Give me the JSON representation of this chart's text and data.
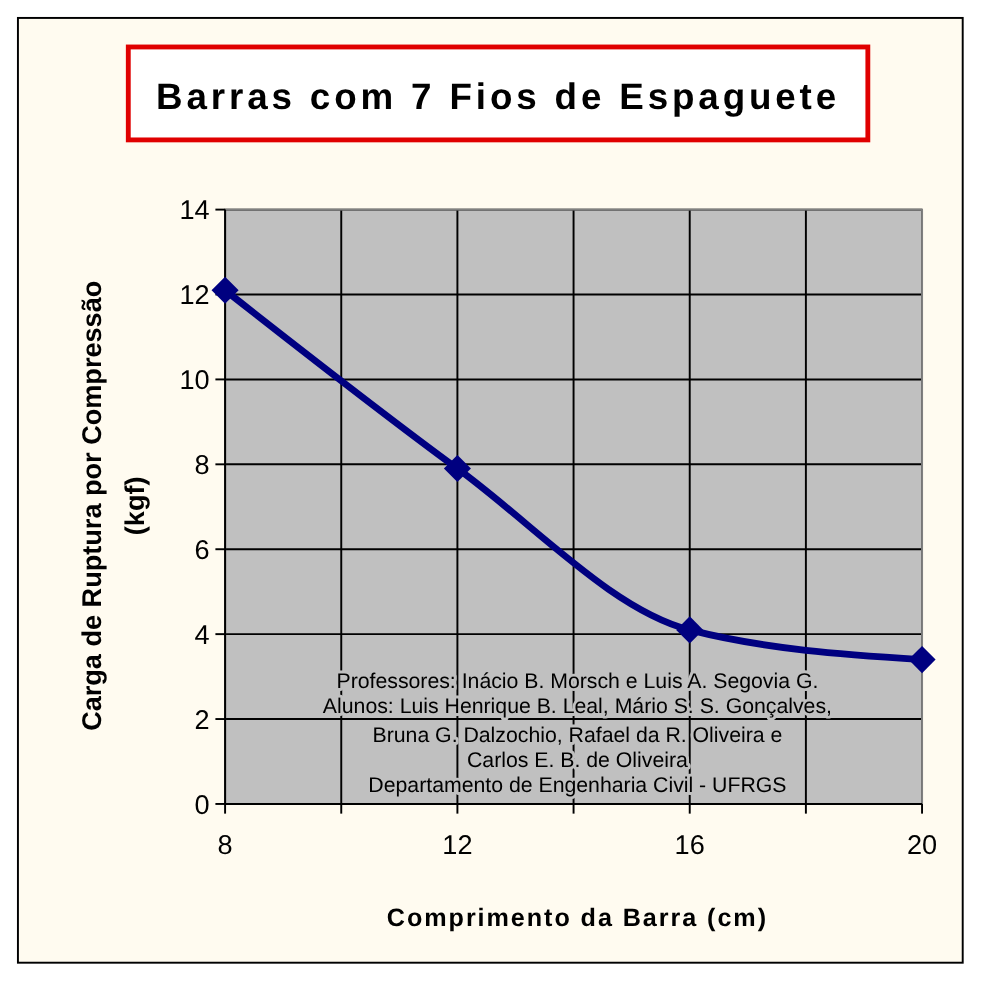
{
  "chart_data": {
    "type": "line",
    "title": "Barras com 7 Fios de Espaguete",
    "xlabel": "Comprimento da Barra (cm)",
    "ylabel": "Carga de Ruptura por Compressão (kgf)",
    "x": [
      8,
      12,
      16,
      20
    ],
    "series": [
      {
        "color": "#000080",
        "values": [
          12.1,
          7.9,
          4.1,
          3.4
        ]
      }
    ],
    "xlim": [
      8,
      20
    ],
    "xticks": [
      8,
      {
        "value": 10,
        "label": null
      },
      12,
      {
        "value": 14,
        "label": null
      },
      16,
      {
        "value": 18,
        "label": null
      },
      20
    ],
    "ylim": [
      0,
      14
    ],
    "yticks": [
      0,
      2,
      4,
      6,
      8,
      10,
      12,
      14
    ],
    "grid": true,
    "marker": "diamond",
    "line_style": "solid",
    "annotations": [
      "Professores: Inácio B. Morsch e Luis A. Segovia G.",
      "Alunos: Luis Henrique B. Leal, Mário S. S. Gonçalves,",
      "Bruna G. Dalzochio, Rafael da R. Oliveira e",
      "Carlos E. B. de Oliveira",
      "Departamento de Engenharia Civil - UFRGS"
    ]
  }
}
